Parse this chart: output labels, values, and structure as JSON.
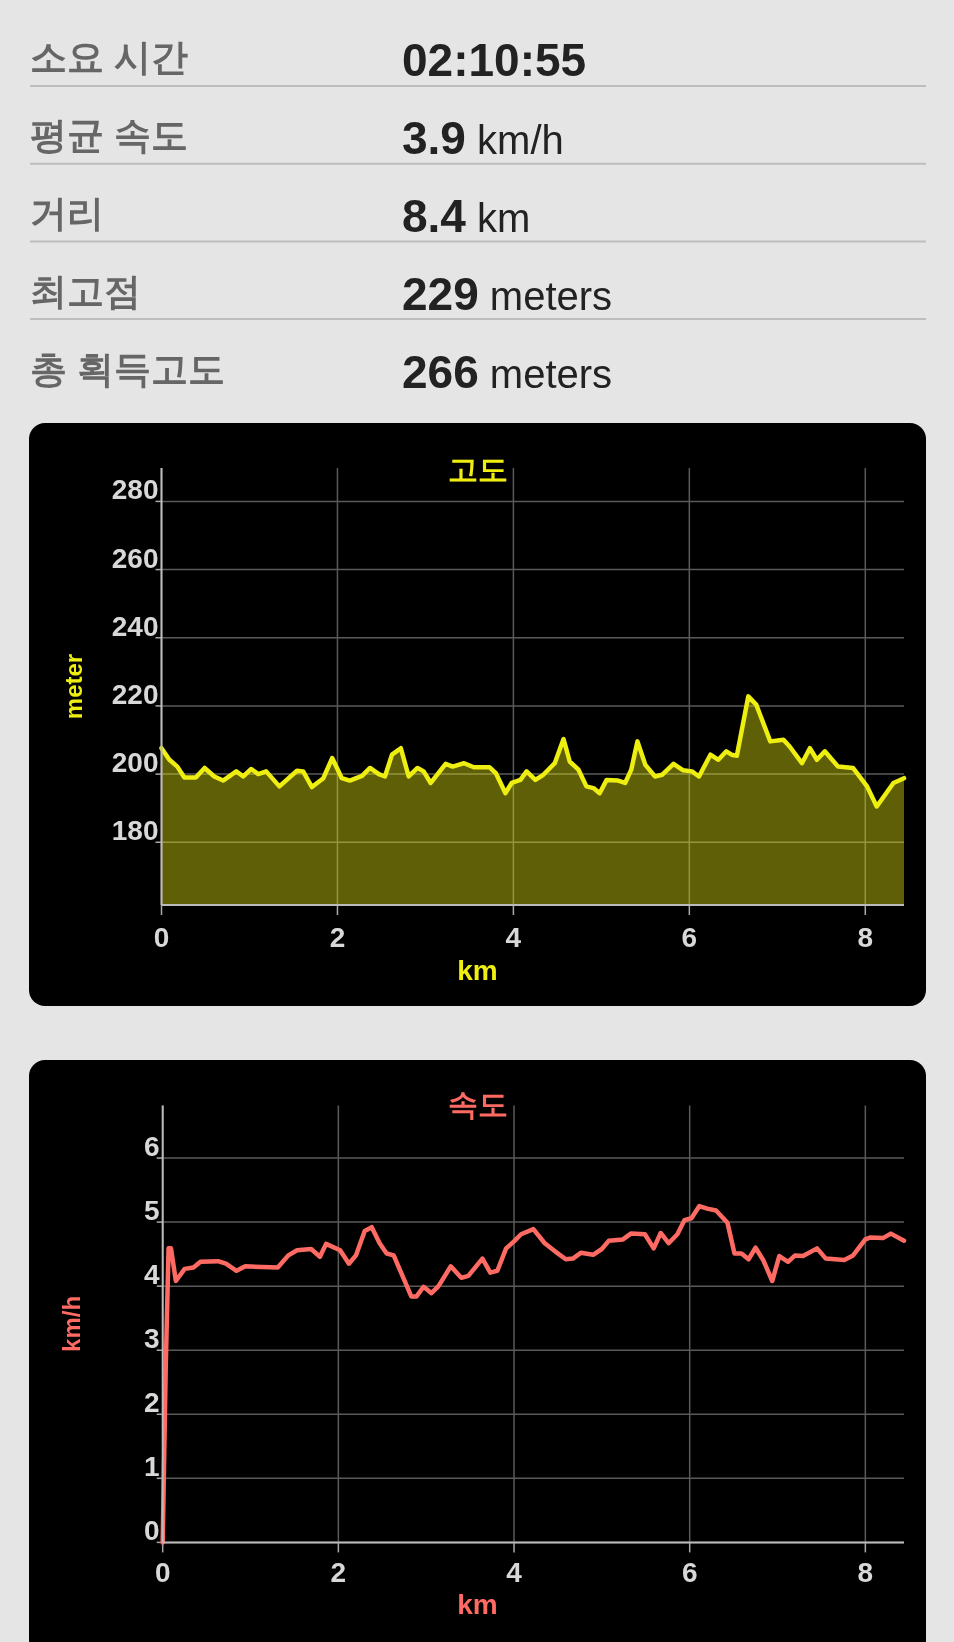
{
  "chart_data": [
    {
      "type": "other",
      "annotations": [
        "소요 시간",
        "**02:10:55**",
        "평균 속도",
        "**3.9** km/h",
        "거리",
        "**8.4** km",
        "최고점",
        "**229** meters",
        "총 획득고도",
        "**266** meters"
      ]
    },
    {
      "type": "area",
      "title": "고도",
      "xlabel": "km",
      "ylabel": "meter",
      "xlim": [
        0,
        8.44
      ],
      "ylim": [
        161.6,
        289.8
      ],
      "xticks": [
        0,
        2,
        4,
        6,
        8
      ],
      "yticks": [
        180,
        200,
        220,
        240,
        260,
        280
      ],
      "grid": true,
      "x": [
        0,
        0.09,
        0.18,
        0.26,
        0.39,
        0.49,
        0.6,
        0.7,
        0.85,
        0.93,
        1.02,
        1.1,
        1.19,
        1.34,
        1.54,
        1.61,
        1.71,
        1.84,
        1.94,
        2.05,
        2.14,
        2.28,
        2.37,
        2.47,
        2.54,
        2.62,
        2.72,
        2.81,
        2.91,
        2.98,
        3.06,
        3.23,
        3.31,
        3.44,
        3.55,
        3.73,
        3.8,
        3.91,
        3.98,
        4.08,
        4.15,
        4.25,
        4.34,
        4.47,
        4.57,
        4.64,
        4.74,
        4.83,
        4.91,
        4.98,
        5.06,
        5.19,
        5.27,
        5.34,
        5.41,
        5.5,
        5.61,
        5.69,
        5.82,
        5.93,
        6.03,
        6.11,
        6.24,
        6.33,
        6.42,
        6.48,
        6.54,
        6.67,
        6.76,
        6.92,
        7.07,
        7.14,
        7.28,
        7.37,
        7.45,
        7.54,
        7.69,
        7.86,
        8.02,
        8.13,
        8.32,
        8.44
      ],
      "series": [
        {
          "color": "#eeee11",
          "values": [
            207.6,
            204.2,
            202.2,
            199,
            199,
            201.8,
            199.3,
            198.1,
            200.8,
            199.3,
            201.5,
            200,
            200.8,
            196.4,
            201,
            200.8,
            196.2,
            198.8,
            204.7,
            198.8,
            198.1,
            199.5,
            201.8,
            200,
            199.3,
            205.7,
            207.6,
            199.3,
            201.8,
            200.8,
            197.4,
            203,
            202.2,
            203.2,
            202,
            202,
            200.3,
            194.4,
            197.4,
            198.3,
            200.8,
            198.3,
            199.8,
            203.2,
            210.3,
            203.7,
            201.3,
            196.4,
            195.9,
            194.4,
            198.3,
            198.1,
            197.4,
            201.3,
            209.6,
            202.7,
            199.3,
            199.8,
            203,
            201.1,
            200.8,
            199.3,
            205.7,
            204.2,
            206.7,
            205.7,
            205.4,
            222.8,
            220.4,
            209.6,
            210.1,
            208.1,
            203.2,
            207.6,
            204.2,
            206.7,
            202.2,
            201.8,
            196.4,
            190.5,
            197.4,
            198.8
          ]
        }
      ]
    },
    {
      "type": "line",
      "title": "속도",
      "xlabel": "km",
      "ylabel": "km/h",
      "xlim": [
        0,
        8.44
      ],
      "ylim": [
        0,
        6.82
      ],
      "xticks": [
        0,
        2,
        4,
        6,
        8
      ],
      "yticks": [
        0,
        1,
        2,
        3,
        4,
        5,
        6
      ],
      "grid": true,
      "x": [
        0,
        0.035,
        0.067,
        0.094,
        0.15,
        0.25,
        0.35,
        0.43,
        0.63,
        0.72,
        0.84,
        0.94,
        1.31,
        1.43,
        1.53,
        1.69,
        1.79,
        1.86,
        2.02,
        2.12,
        2.2,
        2.3,
        2.38,
        2.47,
        2.55,
        2.63,
        2.73,
        2.83,
        2.89,
        2.97,
        3.06,
        3.14,
        3.28,
        3.4,
        3.48,
        3.64,
        3.73,
        3.81,
        3.91,
        4,
        4.08,
        4.22,
        4.35,
        4.47,
        4.59,
        4.67,
        4.76,
        4.9,
        5,
        5.08,
        5.24,
        5.33,
        5.49,
        5.59,
        5.67,
        5.76,
        5.86,
        5.94,
        6.02,
        6.11,
        6.2,
        6.3,
        6.43,
        6.51,
        6.59,
        6.67,
        6.75,
        6.84,
        6.94,
        7.02,
        7.12,
        7.2,
        7.29,
        7.45,
        7.55,
        7.76,
        7.86,
        8,
        8.06,
        8.2,
        8.29,
        8.44
      ],
      "series": [
        {
          "color": "#ff6b63",
          "values": [
            0,
            2.76,
            4.59,
            4.59,
            4.08,
            4.27,
            4.29,
            4.38,
            4.39,
            4.35,
            4.24,
            4.31,
            4.29,
            4.48,
            4.56,
            4.58,
            4.46,
            4.66,
            4.56,
            4.35,
            4.48,
            4.86,
            4.92,
            4.67,
            4.51,
            4.48,
            4.16,
            3.84,
            3.84,
            3.99,
            3.89,
            4,
            4.31,
            4.13,
            4.16,
            4.43,
            4.21,
            4.24,
            4.59,
            4.7,
            4.81,
            4.89,
            4.67,
            4.54,
            4.42,
            4.43,
            4.52,
            4.49,
            4.58,
            4.71,
            4.73,
            4.82,
            4.81,
            4.59,
            4.83,
            4.67,
            4.81,
            5.03,
            5.06,
            5.25,
            5.21,
            5.18,
            4.99,
            4.51,
            4.51,
            4.42,
            4.6,
            4.4,
            4.08,
            4.47,
            4.38,
            4.48,
            4.47,
            4.59,
            4.43,
            4.41,
            4.48,
            4.73,
            4.76,
            4.75,
            4.82,
            4.71
          ]
        }
      ]
    }
  ]
}
